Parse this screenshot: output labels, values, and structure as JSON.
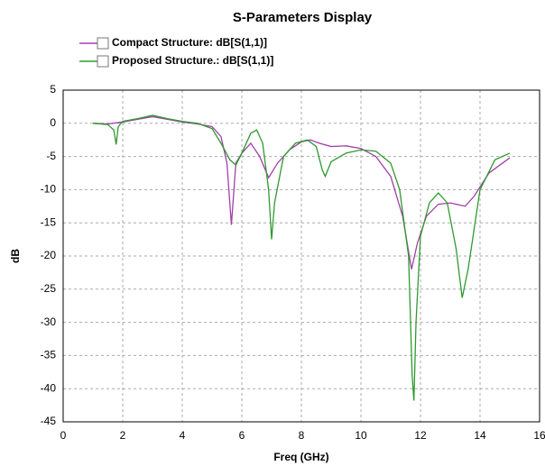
{
  "chart_data": {
    "type": "line",
    "title": "S-Parameters Display",
    "x_label": "Freq (GHz)",
    "y_label": "dB",
    "xlim": [
      0,
      16
    ],
    "xticks": [
      0,
      2,
      4,
      6,
      8,
      10,
      12,
      14,
      16
    ],
    "ylim": [
      -45,
      5
    ],
    "yticks": [
      5,
      0,
      -5,
      -10,
      -15,
      -20,
      -25,
      -30,
      -35,
      -40,
      -45
    ],
    "grid": true,
    "series": [
      {
        "name": "Compact Structure: dB[S(1,1)]",
        "color": "#a040a8",
        "x": [
          1,
          1.5,
          2,
          2.5,
          3,
          3.5,
          4,
          4.5,
          5,
          5.3,
          5.5,
          5.65,
          5.8,
          6,
          6.3,
          6.6,
          6.9,
          7.2,
          7.6,
          8,
          8.3,
          8.6,
          9,
          9.5,
          10,
          10.5,
          11,
          11.4,
          11.7,
          11.9,
          12.2,
          12.6,
          13,
          13.5,
          13.8,
          14.3,
          15
        ],
        "values": [
          0,
          -0.1,
          0.2,
          0.6,
          1.0,
          0.6,
          0.2,
          -0.1,
          -0.5,
          -2,
          -6,
          -15.3,
          -6,
          -4.5,
          -3,
          -5,
          -8.2,
          -6,
          -4,
          -2.8,
          -2.5,
          -3,
          -3.5,
          -3.4,
          -3.8,
          -5,
          -8,
          -14,
          -22,
          -18,
          -14,
          -12.2,
          -12,
          -12.5,
          -11,
          -7.5,
          -5.2
        ]
      },
      {
        "name": "Proposed Structure.: dB[S(1,1)]",
        "color": "#2e9a2e",
        "x": [
          1,
          1.5,
          1.7,
          1.78,
          1.85,
          2,
          2.5,
          3,
          3.5,
          4,
          4.5,
          5,
          5.3,
          5.6,
          5.8,
          6,
          6.3,
          6.5,
          6.7,
          6.9,
          7,
          7.1,
          7.4,
          7.8,
          8.2,
          8.5,
          8.7,
          8.8,
          9,
          9.5,
          10,
          10.5,
          11,
          11.3,
          11.6,
          11.72,
          11.78,
          11.85,
          12,
          12.3,
          12.6,
          12.9,
          13.2,
          13.4,
          13.6,
          14,
          14.5,
          15
        ],
        "values": [
          0,
          -0.2,
          -1,
          -3.2,
          -0.5,
          0.3,
          0.7,
          1.2,
          0.7,
          0.3,
          0,
          -0.8,
          -3,
          -5.5,
          -6.3,
          -4.5,
          -1.5,
          -1,
          -3,
          -10,
          -17.5,
          -12,
          -5,
          -3,
          -2.5,
          -3.5,
          -7,
          -8,
          -5.8,
          -4.5,
          -4,
          -4.2,
          -6,
          -10,
          -20,
          -38,
          -41.8,
          -30,
          -17,
          -12,
          -10.5,
          -12,
          -19,
          -26.3,
          -22,
          -10,
          -5.5,
          -4.5
        ]
      }
    ]
  }
}
